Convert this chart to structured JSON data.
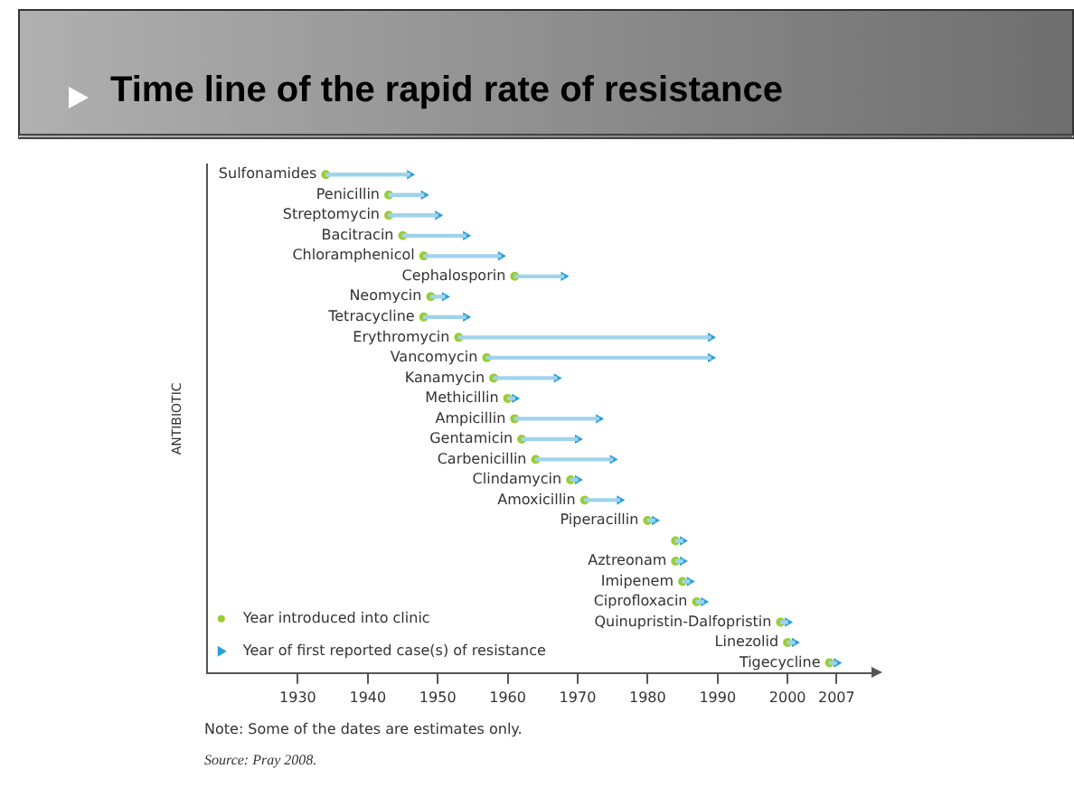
{
  "chart_data": {
    "type": "bar",
    "orientation": "horizontal",
    "title": "Time line of the rapid rate of resistance",
    "ylabel": "ANTIBIOTIC",
    "categories": [
      "Sulfonamides",
      "Penicillin",
      "Streptomycin",
      "Bacitracin",
      "Chloramphenicol",
      "Cephalosporin",
      "Neomycin",
      "Tetracycline",
      "Erythromycin",
      "Vancomycin",
      "Kanamycin",
      "Methicillin",
      "Ampicillin",
      "Gentamicin",
      "Carbenicillin",
      "Clindamycin",
      "Amoxicillin",
      "Piperacillin",
      null,
      "Aztreonam",
      "Imipenem",
      "Ciprofloxacin",
      "Quinupristin-Dalfopristin",
      "Linezolid",
      "Tigecycline"
    ],
    "series": [
      {
        "color": "#9fd3ec",
        "base": [
          1934,
          1943,
          1943,
          1945,
          1948,
          1961,
          1949,
          1948,
          1953,
          1957,
          1958,
          1960,
          1961,
          1962,
          1964,
          1969,
          1971,
          1980,
          1984,
          1984,
          1985,
          1987,
          1999,
          2000,
          2006
        ],
        "values": [
          12,
          5,
          7,
          9,
          11,
          7,
          2,
          6,
          36,
          32,
          9,
          1,
          12,
          8,
          11,
          1,
          5,
          1,
          1,
          1,
          1,
          1,
          1,
          1,
          1
        ]
      },
      {
        "type": "scatter",
        "name": "Year introduced into clinic",
        "color": "#9acd32",
        "marker": "circle",
        "values": [
          1934,
          1943,
          1943,
          1945,
          1948,
          1961,
          1949,
          1948,
          1953,
          1957,
          1958,
          1960,
          1961,
          1962,
          1964,
          1969,
          1971,
          1980,
          1984,
          1984,
          1985,
          1987,
          1999,
          2000,
          2006
        ]
      },
      {
        "type": "scatter",
        "name": "Year of first reported case(s) of resistance",
        "color": "#2a9fd8",
        "marker": "triangle",
        "values": [
          1946,
          1948,
          1950,
          1954,
          1959,
          1968,
          1951,
          1954,
          1989,
          1989,
          1967,
          1961,
          1973,
          1970,
          1975,
          1970,
          1976,
          1981,
          1985,
          1985,
          1986,
          1988,
          2000,
          2001,
          2007
        ]
      }
    ],
    "xlim": [
      1917,
      2012
    ],
    "xticks": [
      1930,
      1940,
      1950,
      1960,
      1970,
      1980,
      1990,
      2000,
      2007
    ],
    "tick_labels": "x",
    "grid": false,
    "legend": "bottom left",
    "annotations": [
      "Note: Some of the dates are estimates only.",
      "Source: Pray 2008."
    ]
  }
}
